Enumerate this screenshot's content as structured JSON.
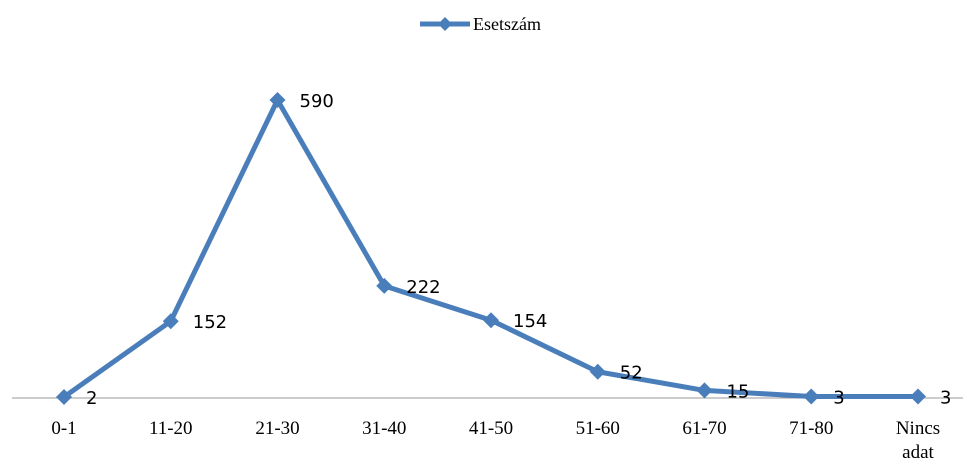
{
  "chart_data": {
    "type": "line",
    "title": "",
    "xlabel": "",
    "ylabel": "",
    "categories": [
      "0-1",
      "11-20",
      "21-30",
      "31-40",
      "41-50",
      "51-60",
      "61-70",
      "71-80",
      "Nincs adat"
    ],
    "series": [
      {
        "name": "Esetszám",
        "values": [
          2,
          152,
          590,
          222,
          154,
          52,
          15,
          3,
          3
        ],
        "color": "#4a7ebb"
      }
    ],
    "ylim": [
      0,
      590
    ],
    "grid": false,
    "legend_position": "top",
    "marker": "diamond"
  }
}
